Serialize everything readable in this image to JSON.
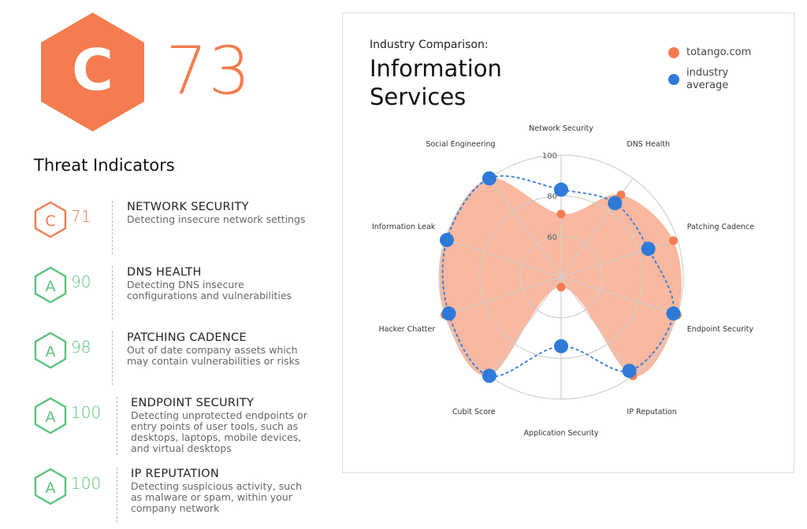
{
  "overall": {
    "grade": "C",
    "score": "73"
  },
  "colors": {
    "orange": "#f47c50",
    "orange_fill": "#f9b49a",
    "green": "#5cc27d",
    "blue": "#2f7ad9",
    "grid": "#cfcfcf"
  },
  "threat_indicators": {
    "title": "Threat Indicators",
    "items": [
      {
        "grade": "C",
        "score": "71",
        "name": "NETWORK SECURITY",
        "description": [
          "Detecting insecure network settings"
        ]
      },
      {
        "grade": "A",
        "score": "90",
        "name": "DNS HEALTH",
        "description": [
          "Detecting DNS insecure",
          "configurations and vulnerabilities"
        ]
      },
      {
        "grade": "A",
        "score": "98",
        "name": "PATCHING CADENCE",
        "description": [
          "Out of date company assets which",
          "may contain vulnerabilities or risks"
        ]
      },
      {
        "grade": "A",
        "score": "100",
        "name": "ENDPOINT SECURITY",
        "description": [
          "Detecting unprotected endpoints or",
          "entry points of user tools, such as",
          "desktops, laptops, mobile devices,",
          "and virtual desktops"
        ]
      },
      {
        "grade": "A",
        "score": "100",
        "name": "IP REPUTATION",
        "description": [
          "Detecting suspicious activity, such",
          "as malware or spam, within your",
          "company network"
        ]
      }
    ]
  },
  "comparison": {
    "subtitle": "Industry Comparison:",
    "title_lines": [
      "Information",
      "Services"
    ],
    "legend": [
      {
        "label_lines": [
          "totango.com"
        ],
        "color": "#f47c50"
      },
      {
        "label_lines": [
          "industry",
          "average"
        ],
        "color": "#2f7ad9"
      }
    ]
  },
  "chart_data": {
    "type": "radar",
    "categories": [
      "Network Security",
      "DNS Health",
      "Patching Cadence",
      "Endpoint Security",
      "IP Reputation",
      "Application Security",
      "Cubit Score",
      "Hacker Chatter",
      "Information Leak",
      "Social Engineering"
    ],
    "radial_ticks": [
      "100",
      "80",
      "60"
    ],
    "range": [
      40,
      100
    ],
    "series": [
      {
        "name": "totango.com",
        "values": [
          71,
          90,
          98,
          100,
          100,
          45,
          100,
          100,
          100,
          100
        ]
      },
      {
        "name": "industry average",
        "values": [
          83,
          85,
          85,
          98,
          97,
          74,
          100,
          98,
          99,
          100
        ]
      }
    ]
  }
}
